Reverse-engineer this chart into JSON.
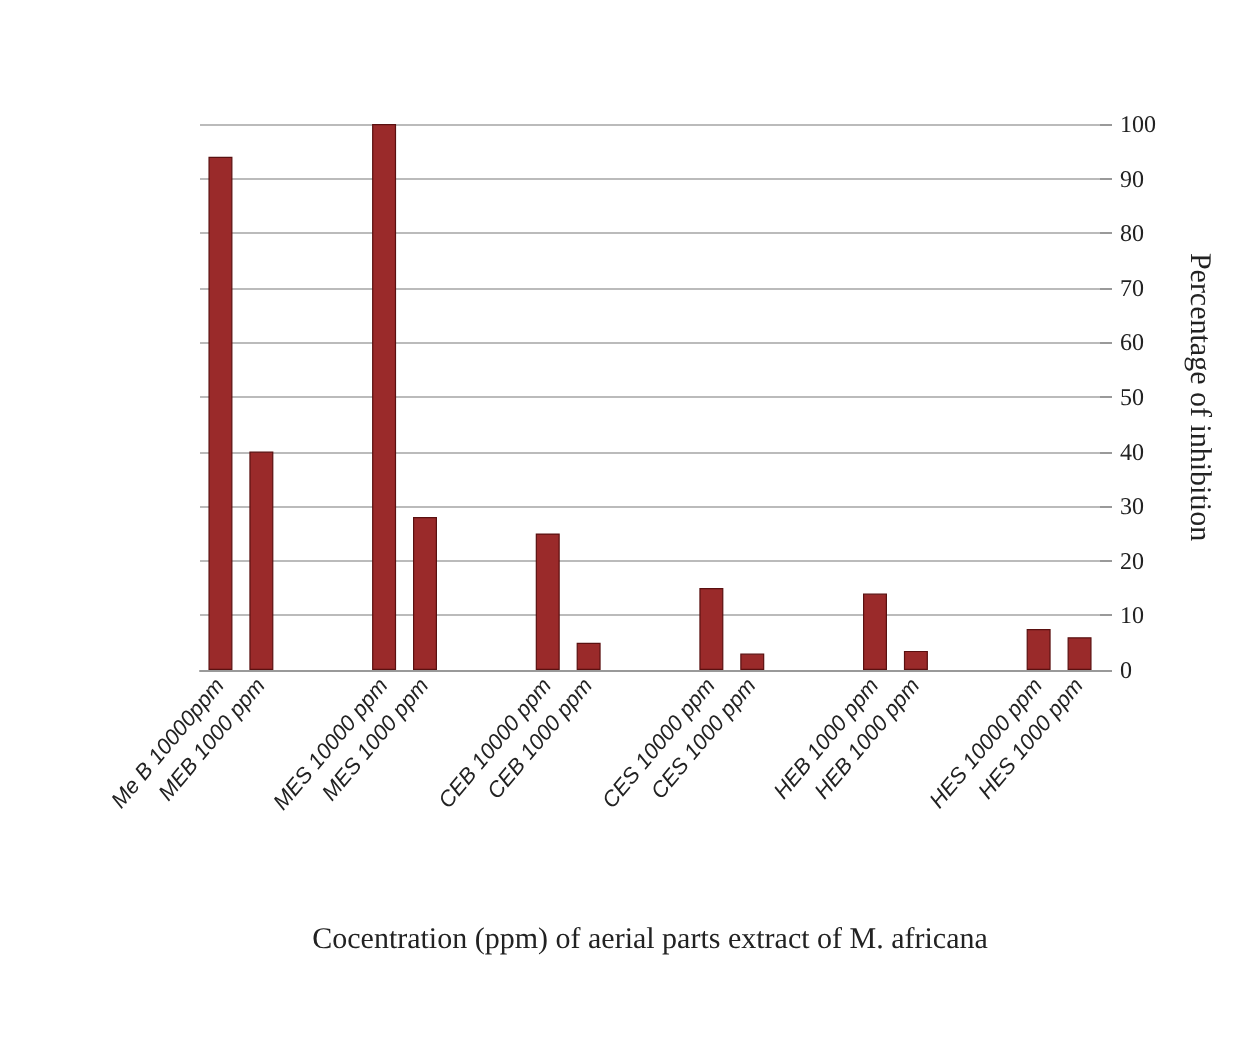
{
  "chart_data": {
    "type": "bar",
    "xlabel": "Cocentration (ppm) of aerial parts extract of M. africana",
    "ylabel": "Percentage of inhibition",
    "categories": [
      "Me B 10000ppm",
      "MEB 1000 ppm",
      null,
      null,
      "MES 10000 ppm",
      "MES 1000 ppm",
      null,
      null,
      "CEB 10000 ppm",
      "CEB 1000 ppm",
      null,
      null,
      "CES 10000 ppm",
      "CES 1000 ppm",
      null,
      null,
      "HEB 1000 ppm",
      "HEB 1000 ppm",
      null,
      null,
      "HES 10000 ppm",
      "HES 1000 ppm"
    ],
    "values": [
      94,
      40,
      null,
      null,
      100,
      28,
      null,
      null,
      25,
      5,
      null,
      null,
      15,
      3,
      null,
      null,
      14,
      3.5,
      null,
      null,
      7.5,
      6
    ],
    "color": "#9a2a2a",
    "ylim": [
      0,
      100
    ],
    "yticks": [
      0,
      10,
      20,
      30,
      40,
      50,
      60,
      70,
      80,
      90,
      100
    ],
    "grid": true
  }
}
